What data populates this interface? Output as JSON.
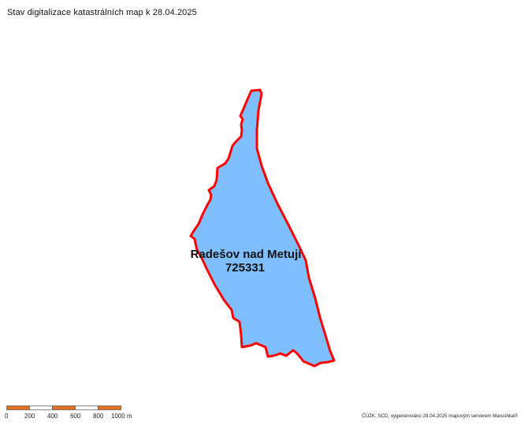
{
  "title": "Stav digitalizace katastrálních map k 28.04.2025",
  "parcel": {
    "name": "Radešov nad Metují",
    "code": "725331",
    "fill_color": "#80bfff",
    "border_color": "#ff0000"
  },
  "scale_bar": {
    "labels": [
      "0",
      "200",
      "400",
      "600",
      "800",
      "1000 m"
    ],
    "color_dark": "#e07020",
    "color_light": "#ffffff"
  },
  "credit": "ČÚZK, SCD, vygenerováno 28.04.2025 mapovým serverem Marushka®"
}
